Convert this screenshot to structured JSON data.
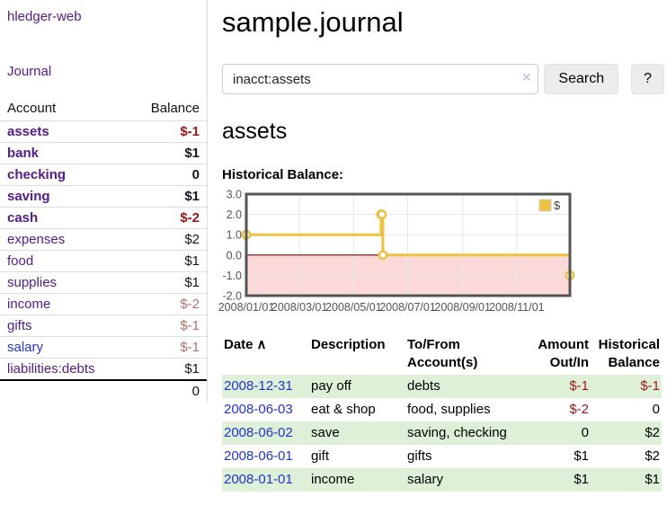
{
  "colors": {
    "link_purple": "#551a8b",
    "link_blue": "#2233cc",
    "negative_strong": "#9e1515",
    "negative_soft": "#b56f6f",
    "row_highlight_green": "#dff0d8",
    "series_gold": "#edc240",
    "negative_region_pink": "#fbd9d9",
    "zero_line_red": "#8b0000"
  },
  "sidebar": {
    "brand": "hledger-web",
    "journal_label": "Journal",
    "accounts": {
      "headers": {
        "account": "Account",
        "balance": "Balance"
      },
      "rows": [
        {
          "name": "assets",
          "balance": "$-1",
          "level": 0,
          "bold": true,
          "balance_style": "neg-strong"
        },
        {
          "name": "bank",
          "balance": "$1",
          "level": 1,
          "bold": true,
          "balance_style": "pos"
        },
        {
          "name": "checking",
          "balance": "0",
          "level": 2,
          "bold": true,
          "balance_style": "pos"
        },
        {
          "name": "saving",
          "balance": "$1",
          "level": 2,
          "bold": true,
          "balance_style": "pos"
        },
        {
          "name": "cash",
          "balance": "$-2",
          "level": 1,
          "bold": true,
          "balance_style": "neg-strong"
        },
        {
          "name": "expenses",
          "balance": "$2",
          "level": 0,
          "bold": false,
          "balance_style": "pos"
        },
        {
          "name": "food",
          "balance": "$1",
          "level": 1,
          "bold": false,
          "balance_style": "pos"
        },
        {
          "name": "supplies",
          "balance": "$1",
          "level": 1,
          "bold": false,
          "balance_style": "pos"
        },
        {
          "name": "income",
          "balance": "$-2",
          "level": 0,
          "bold": false,
          "balance_style": "neg-soft"
        },
        {
          "name": "gifts",
          "balance": "$-1",
          "level": 1,
          "bold": false,
          "balance_style": "neg-soft"
        },
        {
          "name": "salary",
          "balance": "$-1",
          "level": 1,
          "bold": false,
          "balance_style": "neg-soft",
          "link_color": "blue"
        },
        {
          "name": "liabilities:debts",
          "balance": "$1",
          "level": 0,
          "bold": false,
          "balance_style": "pos"
        }
      ],
      "total": "0"
    }
  },
  "main": {
    "title": "sample.journal",
    "search": {
      "value": "inacct:assets",
      "clear_icon": "×",
      "button_label": "Search",
      "help_label": "?"
    },
    "account_heading": "assets",
    "chart_title": "Historical Balance:",
    "register": {
      "headers": {
        "date": "Date",
        "sort_icon": "∧",
        "description": "Description",
        "accounts": "To/From Account(s)",
        "amount": "Amount Out/In",
        "balance": "Historical Balance"
      },
      "rows": [
        {
          "date": "2008-12-31",
          "description": "pay off",
          "accounts": "debts",
          "amount": "$-1",
          "amount_neg": true,
          "balance": "$-1",
          "balance_neg": true,
          "highlight": true
        },
        {
          "date": "2008-06-03",
          "description": "eat & shop",
          "accounts": "food, supplies",
          "amount": "$-2",
          "amount_neg": true,
          "balance": "0",
          "balance_neg": false,
          "highlight": false
        },
        {
          "date": "2008-06-02",
          "description": "save",
          "accounts": "saving, checking",
          "amount": "0",
          "amount_neg": false,
          "balance": "$2",
          "balance_neg": false,
          "highlight": true
        },
        {
          "date": "2008-06-01",
          "description": "gift",
          "accounts": "gifts",
          "amount": "$1",
          "amount_neg": false,
          "balance": "$2",
          "balance_neg": false,
          "highlight": false
        },
        {
          "date": "2008-01-01",
          "description": "income",
          "accounts": "salary",
          "amount": "$1",
          "amount_neg": false,
          "balance": "$1",
          "balance_neg": false,
          "highlight": true
        }
      ]
    }
  },
  "chart_data": {
    "type": "line",
    "line_style": "step",
    "title": "Historical Balance:",
    "series": [
      {
        "name": "$",
        "color": "#edc240",
        "points": [
          [
            "2008-01-01",
            1
          ],
          [
            "2008-06-01",
            2
          ],
          [
            "2008-06-02",
            2
          ],
          [
            "2008-06-03",
            0
          ],
          [
            "2008-12-31",
            -1
          ]
        ]
      }
    ],
    "x_start": "2008-01-01",
    "x_range_days": 365,
    "x_ticks": [
      {
        "day": 0,
        "label": "2008/01/01"
      },
      {
        "day": 60,
        "label": "2008/03/01"
      },
      {
        "day": 121,
        "label": "2008/05/01"
      },
      {
        "day": 182,
        "label": "2008/07/01"
      },
      {
        "day": 244,
        "label": "2008/09/01"
      },
      {
        "day": 305,
        "label": "2008/11/01"
      }
    ],
    "y_ticks": [
      {
        "v": 3,
        "label": "3.0"
      },
      {
        "v": 2,
        "label": "2.0"
      },
      {
        "v": 1,
        "label": "1.0"
      },
      {
        "v": 0,
        "label": "0.0"
      },
      {
        "v": -1,
        "label": "-1.0"
      },
      {
        "v": -2,
        "label": "-2.0"
      }
    ],
    "ylim": [
      -2,
      3
    ],
    "grid": true,
    "legend": {
      "label": "$",
      "position": "top-right"
    },
    "negative_region_fill": "#fbd9d9",
    "zero_line_color": "#8b0000"
  }
}
